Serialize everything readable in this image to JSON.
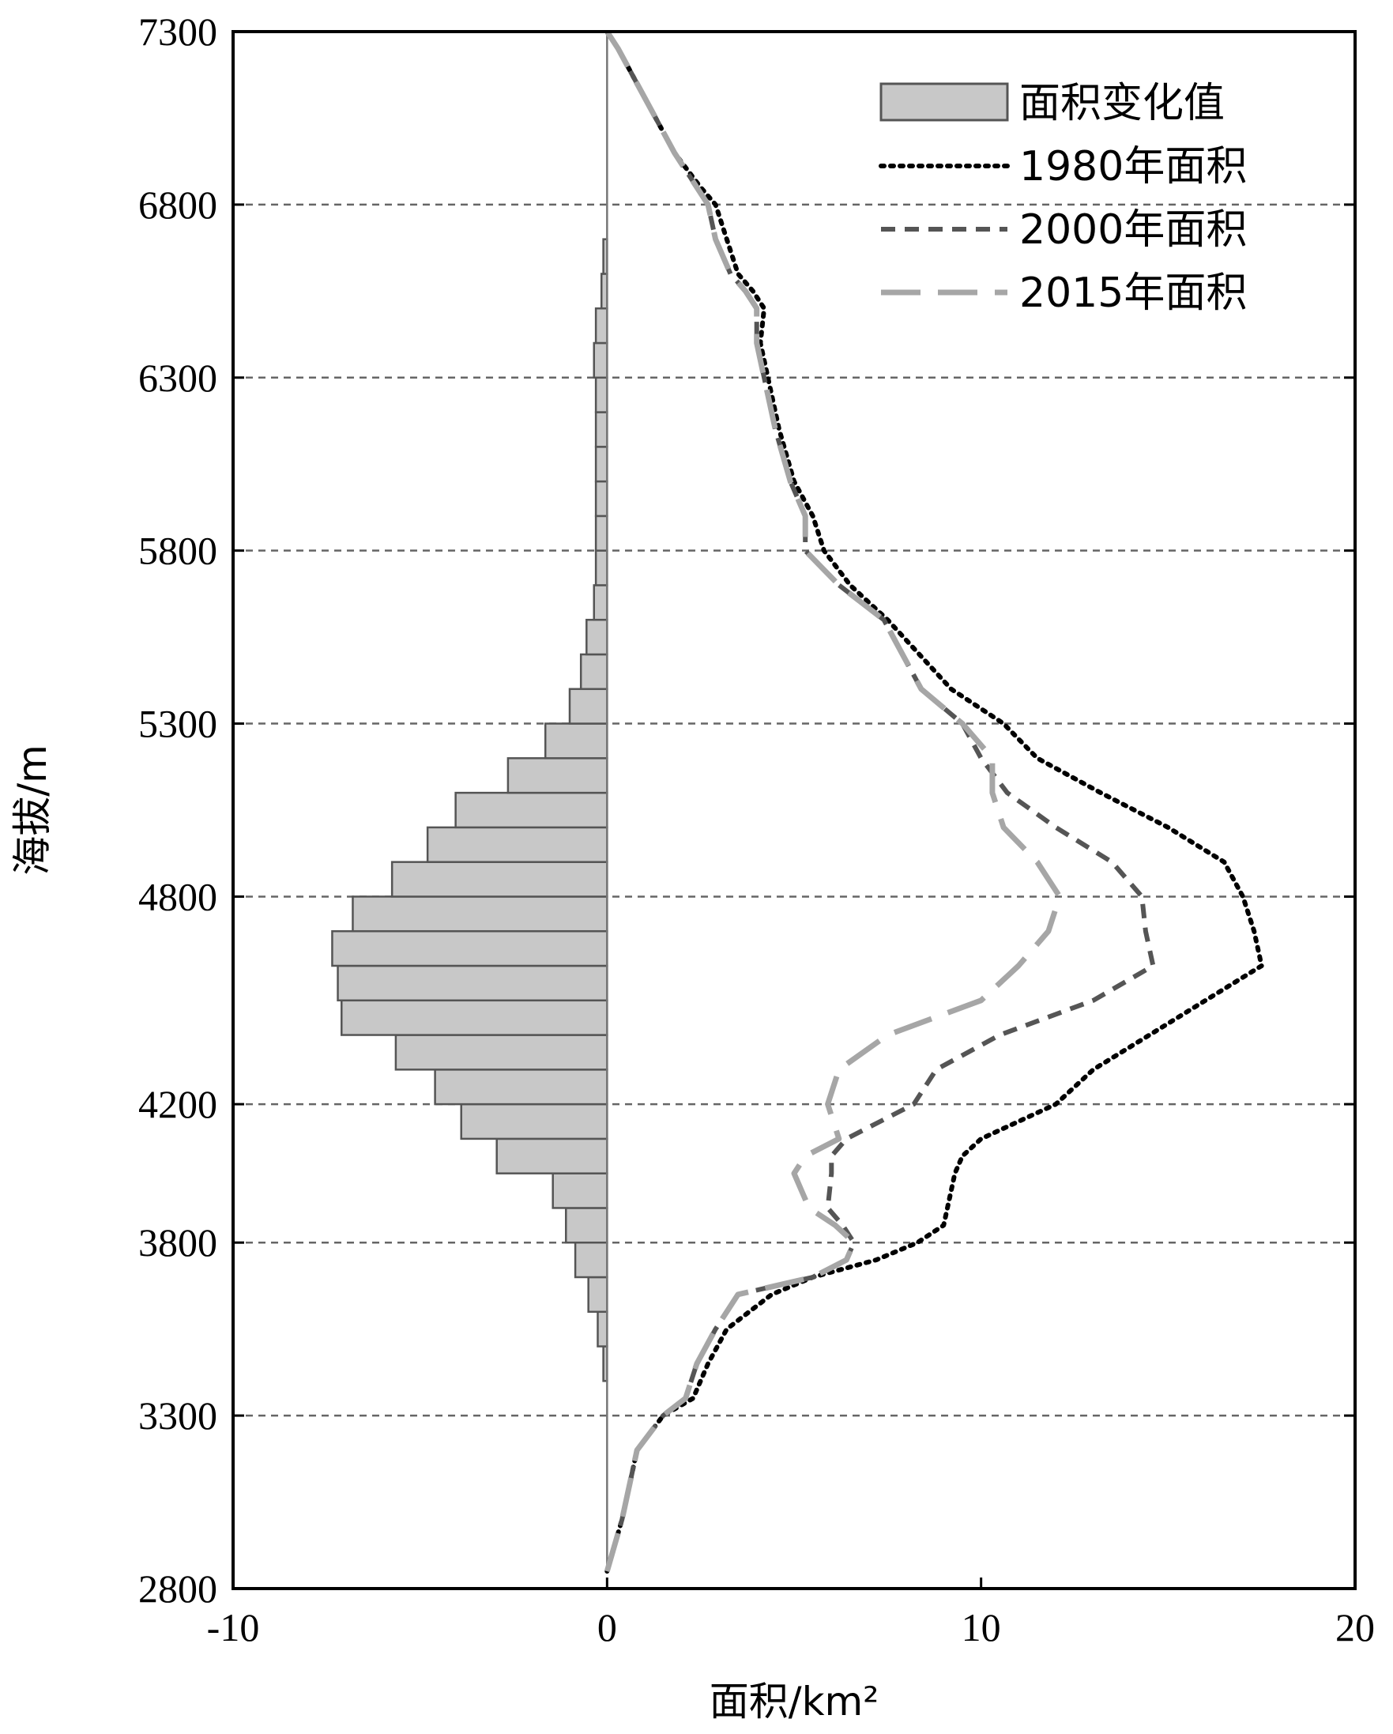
{
  "chart_data": {
    "type": "bar",
    "xlabel": "面积/km²",
    "ylabel": "海拔/m",
    "xlim": [
      -10,
      20
    ],
    "ylim": [
      2800,
      7300
    ],
    "x_ticks": [
      "-10",
      "0",
      "10",
      "20"
    ],
    "y_ticks": [
      "2800",
      "3300",
      "3800",
      "4200",
      "4800",
      "5300",
      "5800",
      "6300",
      "6800",
      "7300"
    ],
    "grid": "horizontal dashed at y ticks",
    "legend_position": "top-right",
    "legend": {
      "bars": "面积变化值",
      "s1980": "1980年面积",
      "s2000": "2000年面积",
      "s2015": "2015年面积"
    },
    "colors": {
      "bar_fill": "#c8c8c8",
      "bar_stroke": "#555555",
      "s1980": "#000000",
      "s2000": "#555555",
      "s2015": "#a6a6a6",
      "grid": "#666666"
    },
    "bars": {
      "name": "面积变化值",
      "bin_width": 100,
      "elevation_bins": [
        3400,
        3500,
        3600,
        3700,
        3800,
        3900,
        4000,
        4100,
        4200,
        4300,
        4400,
        4500,
        4600,
        4700,
        4800,
        4900,
        5000,
        5100,
        5200,
        5300,
        5400,
        5500,
        5600,
        5700,
        5800,
        5900,
        6000,
        6100,
        6200,
        6300,
        6400,
        6500,
        6600
      ],
      "values": [
        -0.1,
        -0.25,
        -0.5,
        -0.85,
        -1.1,
        -1.45,
        -2.95,
        -3.9,
        -4.6,
        -5.65,
        -7.1,
        -7.2,
        -7.35,
        -6.8,
        -5.75,
        -4.8,
        -4.05,
        -2.65,
        -1.65,
        -1.0,
        -0.7,
        -0.55,
        -0.35,
        -0.3,
        -0.3,
        -0.3,
        -0.3,
        -0.3,
        -0.3,
        -0.35,
        -0.3,
        -0.15,
        -0.1
      ]
    },
    "series": [
      {
        "name": "1980年面积",
        "points": [
          [
            0.0,
            2850
          ],
          [
            0.4,
            3000
          ],
          [
            0.8,
            3200
          ],
          [
            1.5,
            3300
          ],
          [
            2.3,
            3350
          ],
          [
            2.7,
            3450
          ],
          [
            3.2,
            3550
          ],
          [
            4.4,
            3650
          ],
          [
            5.5,
            3700
          ],
          [
            7.2,
            3750
          ],
          [
            8.3,
            3800
          ],
          [
            9.0,
            3850
          ],
          [
            9.2,
            3950
          ],
          [
            9.3,
            4000
          ],
          [
            9.5,
            4050
          ],
          [
            10.0,
            4100
          ],
          [
            11.0,
            4150
          ],
          [
            12.0,
            4200
          ],
          [
            13.0,
            4300
          ],
          [
            14.5,
            4400
          ],
          [
            16.0,
            4500
          ],
          [
            17.5,
            4600
          ],
          [
            17.3,
            4700
          ],
          [
            17.0,
            4800
          ],
          [
            16.5,
            4900
          ],
          [
            15.0,
            5000
          ],
          [
            13.2,
            5100
          ],
          [
            11.5,
            5200
          ],
          [
            10.6,
            5300
          ],
          [
            9.2,
            5400
          ],
          [
            7.5,
            5600
          ],
          [
            6.5,
            5700
          ],
          [
            5.8,
            5800
          ],
          [
            5.5,
            5900
          ],
          [
            5.0,
            6000
          ],
          [
            4.6,
            6150
          ],
          [
            4.3,
            6300
          ],
          [
            4.1,
            6400
          ],
          [
            4.2,
            6500
          ],
          [
            3.9,
            6550
          ],
          [
            3.5,
            6600
          ],
          [
            3.2,
            6700
          ],
          [
            2.9,
            6800
          ],
          [
            2.5,
            6850
          ],
          [
            1.8,
            6950
          ],
          [
            1.3,
            7050
          ],
          [
            0.8,
            7150
          ],
          [
            0.3,
            7250
          ],
          [
            0.0,
            7300
          ]
        ]
      },
      {
        "name": "2000年面积",
        "points": [
          [
            0.0,
            2850
          ],
          [
            0.4,
            3000
          ],
          [
            0.8,
            3200
          ],
          [
            1.5,
            3300
          ],
          [
            2.1,
            3350
          ],
          [
            2.4,
            3450
          ],
          [
            2.9,
            3550
          ],
          [
            3.5,
            3650
          ],
          [
            5.5,
            3700
          ],
          [
            6.4,
            3750
          ],
          [
            6.6,
            3800
          ],
          [
            6.3,
            3850
          ],
          [
            5.9,
            3900
          ],
          [
            6.0,
            4000
          ],
          [
            6.0,
            4050
          ],
          [
            6.4,
            4100
          ],
          [
            7.3,
            4150
          ],
          [
            8.2,
            4200
          ],
          [
            8.8,
            4300
          ],
          [
            10.5,
            4400
          ],
          [
            13.0,
            4500
          ],
          [
            14.6,
            4600
          ],
          [
            14.4,
            4700
          ],
          [
            14.3,
            4800
          ],
          [
            13.5,
            4900
          ],
          [
            12.0,
            5000
          ],
          [
            10.7,
            5100
          ],
          [
            10.0,
            5200
          ],
          [
            9.5,
            5300
          ],
          [
            8.4,
            5400
          ],
          [
            7.4,
            5600
          ],
          [
            6.2,
            5700
          ],
          [
            5.3,
            5800
          ],
          [
            5.3,
            5900
          ],
          [
            4.9,
            6000
          ],
          [
            4.5,
            6150
          ],
          [
            4.2,
            6300
          ],
          [
            4.0,
            6400
          ],
          [
            4.0,
            6500
          ],
          [
            3.7,
            6550
          ],
          [
            3.3,
            6600
          ],
          [
            2.9,
            6700
          ],
          [
            2.7,
            6800
          ],
          [
            2.4,
            6850
          ],
          [
            1.8,
            6950
          ],
          [
            1.3,
            7050
          ],
          [
            0.8,
            7150
          ],
          [
            0.3,
            7250
          ],
          [
            0.0,
            7300
          ]
        ]
      },
      {
        "name": "2015年面积",
        "points": [
          [
            0.0,
            2850
          ],
          [
            0.4,
            3000
          ],
          [
            0.8,
            3200
          ],
          [
            1.5,
            3300
          ],
          [
            2.1,
            3350
          ],
          [
            2.4,
            3450
          ],
          [
            2.9,
            3550
          ],
          [
            3.5,
            3650
          ],
          [
            5.5,
            3700
          ],
          [
            6.4,
            3750
          ],
          [
            6.6,
            3800
          ],
          [
            6.1,
            3850
          ],
          [
            5.4,
            3900
          ],
          [
            5.0,
            4000
          ],
          [
            5.3,
            4050
          ],
          [
            6.2,
            4100
          ],
          [
            5.9,
            4200
          ],
          [
            6.2,
            4300
          ],
          [
            7.5,
            4400
          ],
          [
            10.0,
            4500
          ],
          [
            11.0,
            4600
          ],
          [
            11.8,
            4700
          ],
          [
            12.1,
            4800
          ],
          [
            11.5,
            4900
          ],
          [
            10.6,
            5000
          ],
          [
            10.3,
            5100
          ],
          [
            10.3,
            5200
          ],
          [
            9.5,
            5300
          ],
          [
            8.4,
            5400
          ],
          [
            7.4,
            5600
          ],
          [
            6.2,
            5700
          ],
          [
            5.3,
            5800
          ],
          [
            5.3,
            5900
          ],
          [
            4.9,
            6000
          ],
          [
            4.5,
            6150
          ],
          [
            4.2,
            6300
          ],
          [
            4.0,
            6400
          ],
          [
            4.0,
            6500
          ],
          [
            3.7,
            6550
          ],
          [
            3.3,
            6600
          ],
          [
            2.9,
            6700
          ],
          [
            2.7,
            6800
          ],
          [
            2.4,
            6850
          ],
          [
            1.8,
            6950
          ],
          [
            1.3,
            7050
          ],
          [
            0.8,
            7150
          ],
          [
            0.3,
            7250
          ],
          [
            0.0,
            7300
          ]
        ]
      }
    ]
  }
}
